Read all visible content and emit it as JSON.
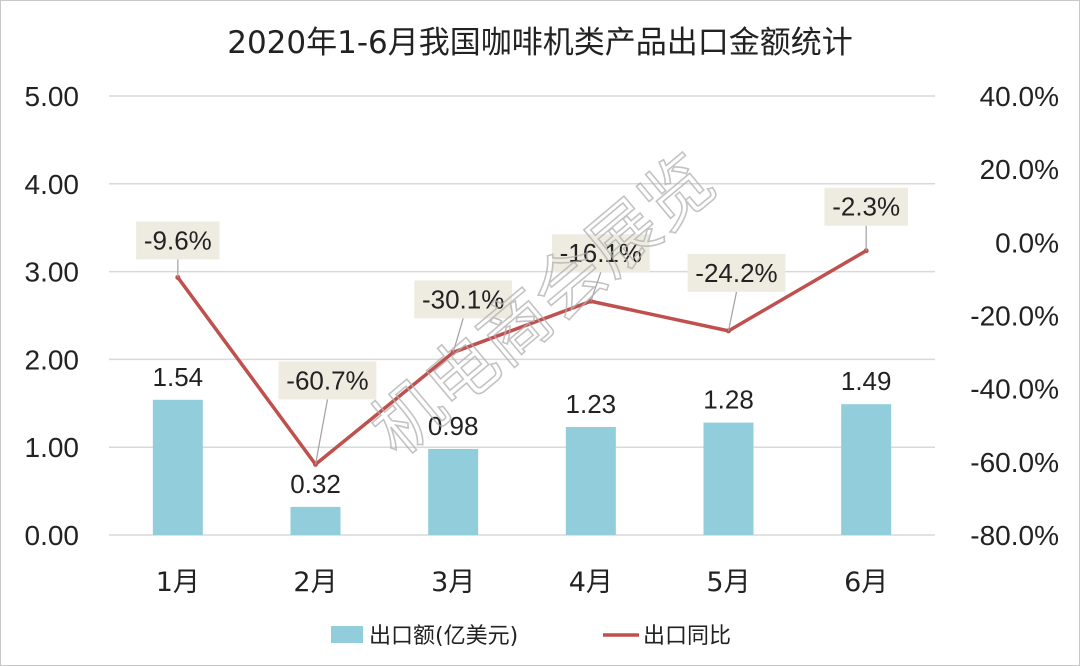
{
  "watermark": "机电商会展览",
  "chart_data": {
    "type": "bar",
    "title": "2020年1-6月我国咖啡机类产品出口金额统计",
    "categories": [
      "1月",
      "2月",
      "3月",
      "4月",
      "5月",
      "6月"
    ],
    "series": [
      {
        "name": "出口额(亿美元)",
        "type": "bar",
        "axis": "left",
        "color": "#92cddc",
        "values": [
          1.54,
          0.32,
          0.98,
          1.23,
          1.28,
          1.49
        ],
        "labels": [
          "1.54",
          "0.32",
          "0.98",
          "1.23",
          "1.28",
          "1.49"
        ]
      },
      {
        "name": "出口同比",
        "type": "line",
        "axis": "right",
        "color": "#c0504d",
        "values": [
          -9.6,
          -60.7,
          -30.1,
          -16.1,
          -24.2,
          -2.3
        ],
        "labels": [
          "-9.6%",
          "-60.7%",
          "-30.1%",
          "-16.1%",
          "-24.2%",
          "-2.3%"
        ],
        "label_background": "#eeece1"
      }
    ],
    "y_left": {
      "range": [
        0,
        5
      ],
      "ticks": [
        0,
        1,
        2,
        3,
        4,
        5
      ],
      "tick_labels": [
        "0.00",
        "1.00",
        "2.00",
        "3.00",
        "4.00",
        "5.00"
      ]
    },
    "y_right": {
      "unit": "%",
      "range": [
        -80,
        40
      ],
      "ticks": [
        -80,
        -60,
        -40,
        -20,
        0,
        20,
        40
      ],
      "tick_labels": [
        "-80.0%",
        "-60.0%",
        "-40.0%",
        "-20.0%",
        "0.0%",
        "20.0%",
        "40.0%"
      ]
    },
    "grid": true,
    "gridline_color": "#d9d9d9",
    "legend_position": "bottom"
  }
}
